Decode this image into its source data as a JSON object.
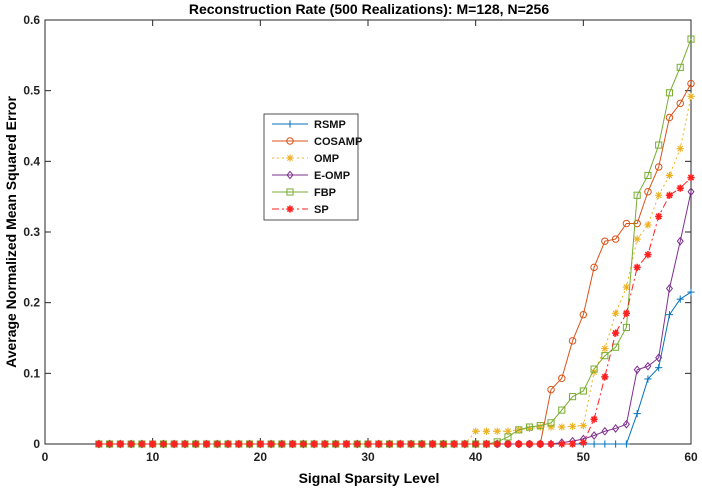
{
  "chart_data": {
    "type": "line",
    "title": "Reconstruction Rate (500 Realizations): M=128, N=256",
    "xlabel": "Signal Sparsity Level",
    "ylabel": "Average Normalized Mean Squared Error",
    "xlim": [
      0,
      60
    ],
    "ylim": [
      0,
      0.6
    ],
    "xticks": [
      0,
      10,
      20,
      30,
      40,
      50,
      60
    ],
    "yticks": [
      0,
      0.1,
      0.2,
      0.3,
      0.4,
      0.5,
      0.6
    ],
    "grid": false,
    "legend_position": "center-left",
    "x": [
      5,
      6,
      7,
      8,
      9,
      10,
      11,
      12,
      13,
      14,
      15,
      16,
      17,
      18,
      19,
      20,
      21,
      22,
      23,
      24,
      25,
      26,
      27,
      28,
      29,
      30,
      31,
      32,
      33,
      34,
      35,
      36,
      37,
      38,
      39,
      40,
      41,
      42,
      43,
      44,
      45,
      46,
      47,
      48,
      49,
      50,
      51,
      52,
      53,
      54,
      55,
      56,
      57,
      58,
      59,
      60
    ],
    "series": [
      {
        "name": "RSMP",
        "color": "#0072BD",
        "marker": "plus",
        "dash": "solid",
        "values": [
          0,
          0,
          0,
          0,
          0,
          0,
          0,
          0,
          0,
          0,
          0,
          0,
          0,
          0,
          0,
          0,
          0,
          0,
          0,
          0,
          0,
          0,
          0,
          0,
          0,
          0,
          0,
          0,
          0,
          0,
          0,
          0,
          0,
          0,
          0,
          0,
          0,
          0,
          0,
          0,
          0,
          0,
          0,
          0,
          0,
          0,
          0,
          0,
          0,
          0,
          0.043,
          0.092,
          0.108,
          0.183,
          0.205,
          0.215
        ]
      },
      {
        "name": "COSAMP",
        "color": "#D95319",
        "marker": "circle",
        "dash": "solid",
        "values": [
          0,
          0,
          0,
          0,
          0,
          0,
          0,
          0,
          0,
          0,
          0,
          0,
          0,
          0,
          0,
          0,
          0,
          0,
          0,
          0,
          0,
          0,
          0,
          0,
          0,
          0,
          0,
          0,
          0,
          0,
          0,
          0,
          0,
          0,
          0,
          0,
          0,
          0,
          0,
          0,
          0,
          0,
          0.077,
          0.093,
          0.146,
          0.183,
          0.25,
          0.287,
          0.29,
          0.312,
          0.312,
          0.357,
          0.392,
          0.462,
          0.482,
          0.51
        ]
      },
      {
        "name": "OMP",
        "color": "#EDB120",
        "marker": "asterisk",
        "dash": "dotted",
        "values": [
          0,
          0,
          0,
          0,
          0,
          0,
          0,
          0,
          0,
          0,
          0,
          0,
          0,
          0,
          0,
          0,
          0,
          0,
          0,
          0,
          0,
          0,
          0,
          0,
          0,
          0,
          0,
          0,
          0,
          0,
          0,
          0,
          0,
          0,
          0,
          0.018,
          0.018,
          0.018,
          0.018,
          0.02,
          0.022,
          0.024,
          0.024,
          0.024,
          0.025,
          0.026,
          0.102,
          0.135,
          0.185,
          0.222,
          0.29,
          0.31,
          0.352,
          0.38,
          0.418,
          0.492
        ]
      },
      {
        "name": "E-OMP",
        "color": "#7E2F8E",
        "marker": "diamond",
        "dash": "solid",
        "values": [
          0,
          0,
          0,
          0,
          0,
          0,
          0,
          0,
          0,
          0,
          0,
          0,
          0,
          0,
          0,
          0,
          0,
          0,
          0,
          0,
          0,
          0,
          0,
          0,
          0,
          0,
          0,
          0,
          0,
          0,
          0,
          0,
          0,
          0,
          0,
          0,
          0,
          0,
          0,
          0,
          0,
          0,
          0,
          0.002,
          0.004,
          0.007,
          0.012,
          0.018,
          0.022,
          0.028,
          0.105,
          0.11,
          0.122,
          0.22,
          0.287,
          0.357
        ]
      },
      {
        "name": "FBP",
        "color": "#77AC30",
        "marker": "square",
        "dash": "solid",
        "values": [
          0,
          0,
          0,
          0,
          0,
          0,
          0,
          0,
          0,
          0,
          0,
          0,
          0,
          0,
          0,
          0,
          0,
          0,
          0,
          0,
          0,
          0,
          0,
          0,
          0,
          0,
          0,
          0,
          0,
          0,
          0,
          0,
          0,
          0,
          0,
          0,
          0,
          0.003,
          0.01,
          0.02,
          0.024,
          0.026,
          0.03,
          0.048,
          0.067,
          0.075,
          0.106,
          0.125,
          0.137,
          0.165,
          0.352,
          0.38,
          0.423,
          0.497,
          0.533,
          0.573
        ]
      },
      {
        "name": "SP",
        "color": "#FF2020",
        "marker": "star",
        "dash": "dashdot",
        "values": [
          0,
          0,
          0,
          0,
          0,
          0,
          0,
          0,
          0,
          0,
          0,
          0,
          0,
          0,
          0,
          0,
          0,
          0,
          0,
          0,
          0,
          0,
          0,
          0,
          0,
          0,
          0,
          0,
          0,
          0,
          0,
          0,
          0,
          0,
          0,
          0,
          0,
          0,
          0,
          0,
          0,
          0,
          0,
          0,
          0,
          0.002,
          0.035,
          0.095,
          0.157,
          0.185,
          0.25,
          0.268,
          0.322,
          0.352,
          0.362,
          0.377
        ]
      }
    ]
  }
}
